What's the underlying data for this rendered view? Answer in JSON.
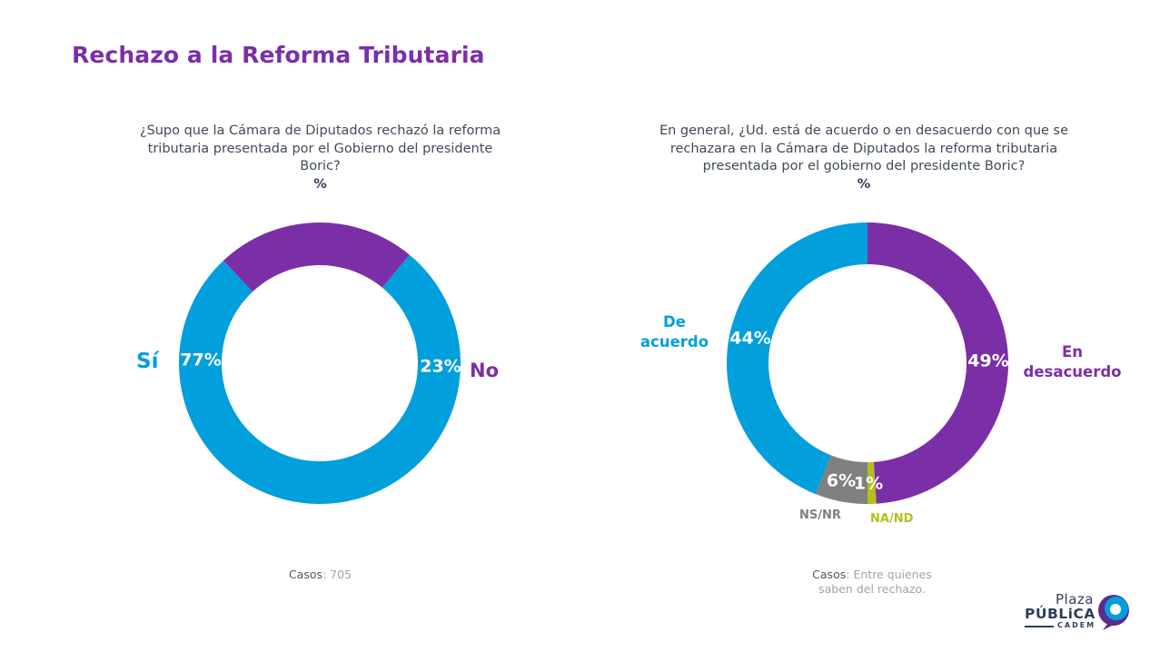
{
  "title": "Rechazo a la Reforma Tributaria",
  "colors": {
    "title": "#7b2fa6",
    "blue": "#029fdd",
    "purple": "#7b2fa6",
    "gray": "#808080",
    "olive": "#b5be1e"
  },
  "left": {
    "question": "¿Supo que la Cámara de Diputados rechazó la reforma tributaria presentada por el Gobierno del presidente Boric?",
    "unit": "%",
    "casos_label": "Casos",
    "casos_value": ": 705"
  },
  "right": {
    "question": "En general, ¿Ud. está de acuerdo o en desacuerdo con que se rechazara en la Cámara de Diputados la reforma tributaria presentada por el gobierno del presidente Boric?",
    "unit": "%",
    "casos_label": "Casos",
    "casos_value": ": Entre quienes saben del rechazo."
  },
  "logo": {
    "line1": "Plaza",
    "line2": "PÚBLiCA",
    "line3": "CADEM"
  },
  "chart_data": [
    {
      "type": "pie",
      "donut": true,
      "title": "¿Supo que la Cámara de Diputados rechazó la reforma tributaria presentada por el Gobierno del presidente Boric?",
      "unit": "%",
      "categories": [
        "Sí",
        "No"
      ],
      "values": [
        77,
        23
      ],
      "labels": [
        "77%",
        "23%"
      ],
      "colors": [
        "#029fdd",
        "#7b2fa6"
      ]
    },
    {
      "type": "pie",
      "donut": true,
      "title": "En general, ¿Ud. está de acuerdo o en desacuerdo con que se rechazara en la Cámara de Diputados la reforma tributaria presentada por el gobierno del presidente Boric?",
      "unit": "%",
      "categories": [
        "En desacuerdo",
        "NA/ND",
        "NS/NR",
        "De acuerdo"
      ],
      "values": [
        49,
        1,
        6,
        44
      ],
      "labels": [
        "49%",
        "1%",
        "6%",
        "44%"
      ],
      "colors": [
        "#7b2fa6",
        "#b5be1e",
        "#808080",
        "#029fdd"
      ]
    }
  ]
}
